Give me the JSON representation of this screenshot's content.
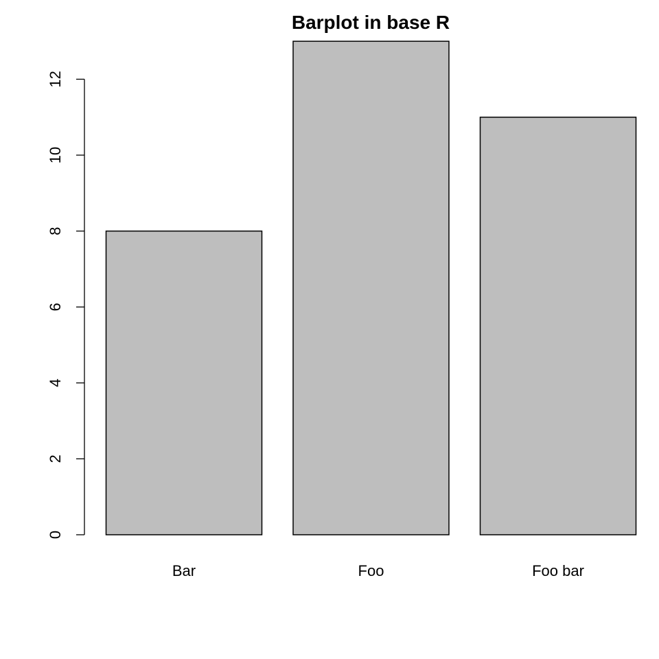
{
  "chart_data": {
    "type": "bar",
    "title": "Barplot in base R",
    "categories": [
      "Bar",
      "Foo",
      "Foo bar"
    ],
    "values": [
      8,
      13,
      11
    ],
    "xlabel": "",
    "ylabel": "",
    "yticks": [
      "0",
      "2",
      "4",
      "6",
      "8",
      "10",
      "12"
    ],
    "ylim": [
      0,
      13
    ],
    "grid": false,
    "bar_fill": "#bebebe",
    "bar_stroke": "#000000"
  }
}
